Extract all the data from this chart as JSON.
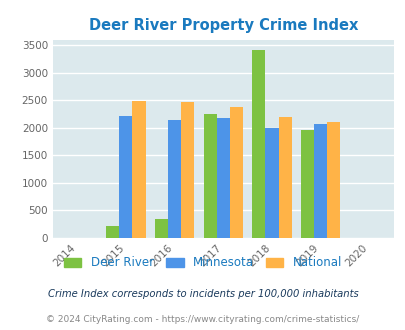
{
  "title": "Deer River Property Crime Index",
  "years": [
    2015,
    2016,
    2017,
    2018,
    2019
  ],
  "x_ticks": [
    2014,
    2015,
    2016,
    2017,
    2018,
    2019,
    2020
  ],
  "deer_river": [
    220,
    340,
    2250,
    3420,
    1960
  ],
  "minnesota": [
    2220,
    2130,
    2180,
    2000,
    2060
  ],
  "national": [
    2490,
    2470,
    2370,
    2200,
    2100
  ],
  "ylim": [
    0,
    3600
  ],
  "yticks": [
    0,
    500,
    1000,
    1500,
    2000,
    2500,
    3000,
    3500
  ],
  "color_deer": "#7dc242",
  "color_mn": "#4d94e8",
  "color_nat": "#ffb347",
  "bg_color": "#dce9ed",
  "grid_color": "#ffffff",
  "title_color": "#1a7abf",
  "label_deer": "Deer River",
  "label_mn": "Minnesota",
  "label_nat": "National",
  "footnote1": "Crime Index corresponds to incidents per 100,000 inhabitants",
  "footnote2": "© 2024 CityRating.com - https://www.cityrating.com/crime-statistics/",
  "bar_width": 0.27,
  "footnote1_color": "#1a3a5c",
  "footnote2_color": "#888888",
  "legend_text_color": "#1a7abf"
}
